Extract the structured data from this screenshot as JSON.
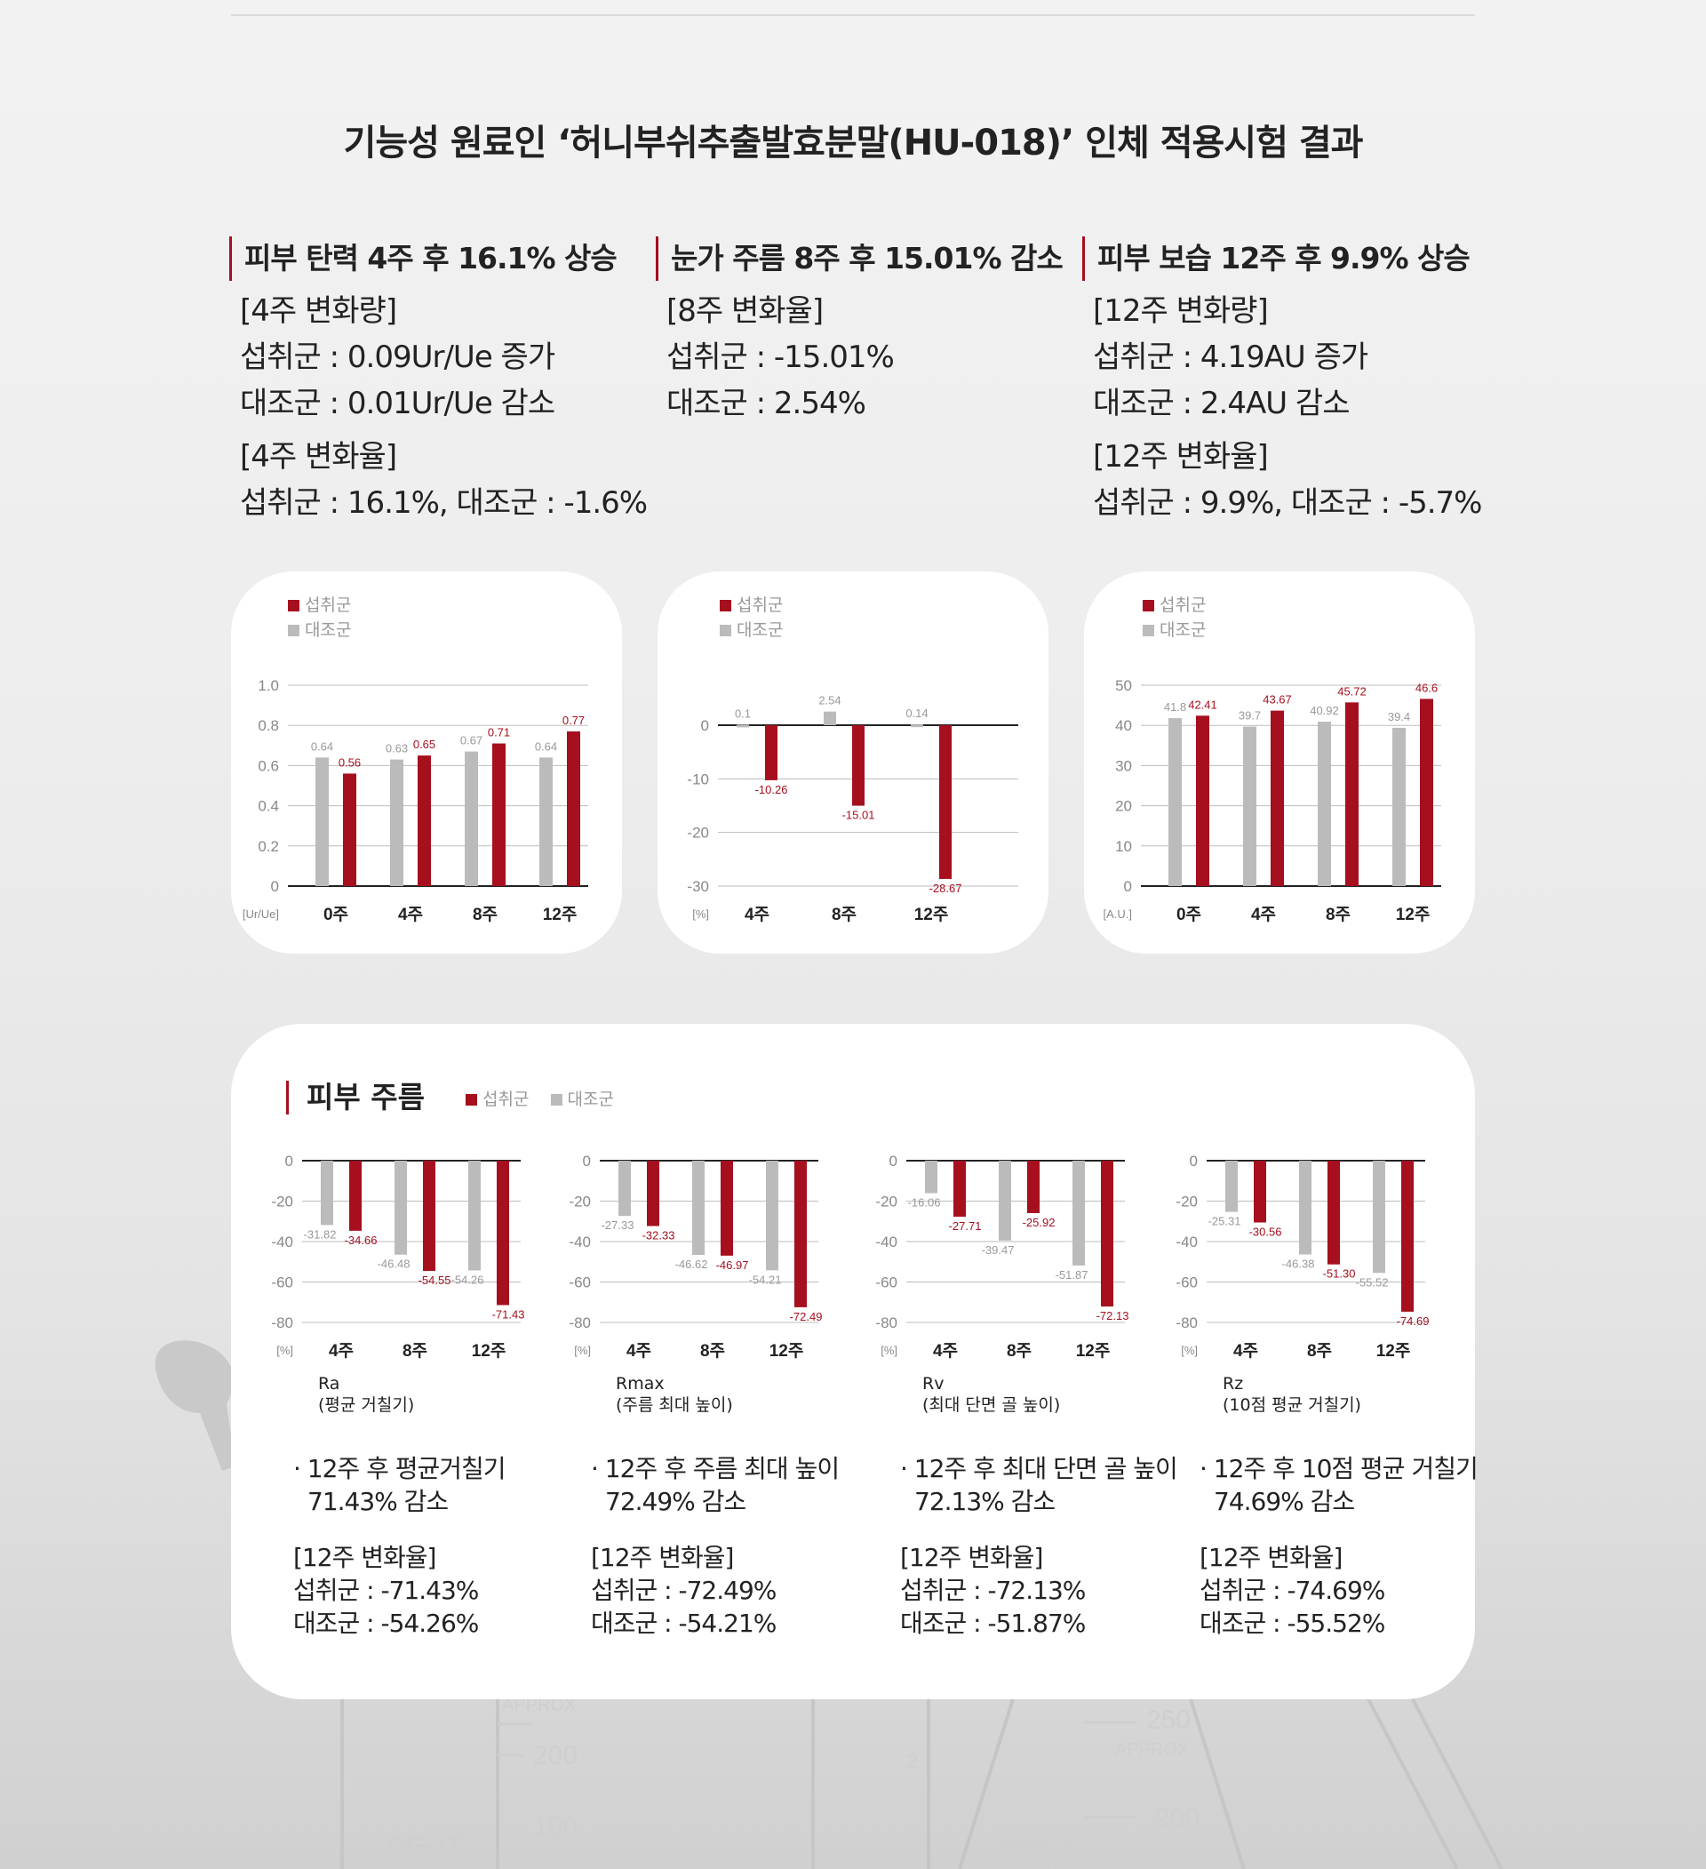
{
  "page_title": "기능성 원료인 ‘허니부쉬추출발효분말(HU-018)’ 인체 적용시험 결과",
  "colors": {
    "intake": "#a50f1e",
    "control": "#bbbbbb",
    "accent": "#a50f1e"
  },
  "summaries": [
    {
      "head": "피부 탄력 4주 후 16.1% 상승",
      "lines": [
        "[4주 변화량]",
        "섭취군 : 0.09Ur/Ue 증가",
        "대조군 : 0.01Ur/Ue 감소"
      ],
      "lines2": [
        "[4주 변화율]",
        "섭취군 : 16.1%, 대조군 : -1.6%"
      ]
    },
    {
      "head": "눈가 주름 8주 후 15.01% 감소",
      "lines": [
        "[8주 변화율]",
        "섭취군 : -15.01%",
        "대조군 : 2.54%"
      ],
      "lines2": []
    },
    {
      "head": "피부 보습 12주 후 9.9% 상승",
      "lines": [
        "[12주 변화량]",
        "섭취군 : 4.19AU 증가",
        "대조군 : 2.4AU 감소"
      ],
      "lines2": [
        "[12주 변화율]",
        "섭취군 : 9.9%, 대조군 : -5.7%"
      ]
    }
  ],
  "legend": {
    "intake": "섭취군",
    "control": "대조군"
  },
  "wrinkle_section": {
    "title": "피부 주름",
    "captions": [
      [
        "Ra",
        "(평균 거칠기)"
      ],
      [
        "Rmax",
        "(주름 최대 높이)"
      ],
      [
        "Rv",
        "(최대 단면 골 높이)"
      ],
      [
        "Rz",
        "(10점 평균 거칠기)"
      ]
    ],
    "notes": [
      [
        "· 12주 후 평균거칠기",
        "71.43% 감소",
        "[12주 변화율]",
        "섭취군 : -71.43%",
        "대조군 : -54.26%"
      ],
      [
        "· 12주 후 주름 최대 높이",
        "72.49% 감소",
        "[12주 변화율]",
        "섭취군 : -72.49%",
        "대조군 : -54.21%"
      ],
      [
        "· 12주 후 최대 단면 골 높이",
        "72.13% 감소",
        "[12주 변화율]",
        "섭취군 : -72.13%",
        "대조군 : -51.87%"
      ],
      [
        "· 12주 후 10점 평균 거칠기",
        "74.69% 감소",
        "[12주 변화율]",
        "섭취군 : -74.69%",
        "대조군 : -55.52%"
      ]
    ]
  },
  "chart_data": [
    {
      "type": "bar",
      "unit": "[Ur/Ue]",
      "categories": [
        "0주",
        "4주",
        "8주",
        "12주"
      ],
      "ylim": [
        0,
        1.0
      ],
      "yticks": [
        "0",
        "0.2",
        "0.4",
        "0.6",
        "0.8",
        "1.0"
      ],
      "ytick_values": [
        0,
        0.2,
        0.4,
        0.6,
        0.8,
        1.0
      ],
      "series": [
        {
          "name": "대조군",
          "values": [
            0.64,
            0.63,
            0.67,
            0.64
          ],
          "labels": [
            "0.64",
            "0.63",
            "0.67",
            "0.64"
          ]
        },
        {
          "name": "섭취군",
          "values": [
            0.56,
            0.65,
            0.71,
            0.77
          ],
          "labels": [
            "0.56",
            "0.65",
            "0.71",
            "0.77"
          ]
        }
      ]
    },
    {
      "type": "bar",
      "unit": "[%]",
      "categories": [
        "4주",
        "8주",
        "12주"
      ],
      "ylim": [
        -30,
        0
      ],
      "yticks": [
        "0",
        "-10",
        "-20",
        "-30"
      ],
      "ytick_values": [
        0,
        -10,
        -20,
        -30
      ],
      "series": [
        {
          "name": "대조군",
          "values": [
            0.1,
            2.54,
            0.14
          ],
          "labels": [
            "0.1",
            "2.54",
            "0.14"
          ]
        },
        {
          "name": "섭취군",
          "values": [
            -10.26,
            -15.01,
            -28.67
          ],
          "labels": [
            "-10.26",
            "-15.01",
            "-28.67"
          ]
        }
      ]
    },
    {
      "type": "bar",
      "unit": "[A.U.]",
      "categories": [
        "0주",
        "4주",
        "8주",
        "12주"
      ],
      "ylim": [
        0,
        50
      ],
      "yticks": [
        "0",
        "10",
        "20",
        "30",
        "40",
        "50"
      ],
      "ytick_values": [
        0,
        10,
        20,
        30,
        40,
        50
      ],
      "series": [
        {
          "name": "대조군",
          "values": [
            41.8,
            39.7,
            40.92,
            39.4
          ],
          "labels": [
            "41.8",
            "39.7",
            "40.92",
            "39.4"
          ]
        },
        {
          "name": "섭취군",
          "values": [
            42.41,
            43.67,
            45.72,
            46.6
          ],
          "labels": [
            "42.41",
            "43.67",
            "45.72",
            "46.6"
          ]
        }
      ]
    },
    {
      "type": "bar",
      "unit": "[%]",
      "categories": [
        "4주",
        "8주",
        "12주"
      ],
      "ylim": [
        -80,
        0
      ],
      "yticks": [
        "0",
        "-20",
        "-40",
        "-60",
        "-80"
      ],
      "ytick_values": [
        0,
        -20,
        -40,
        -60,
        -80
      ],
      "series": [
        {
          "name": "대조군",
          "values": [
            -31.82,
            -46.48,
            -54.26
          ],
          "labels": [
            "-31.82",
            "-46.48",
            "-54.26"
          ]
        },
        {
          "name": "섭취군",
          "values": [
            -34.66,
            -54.55,
            -71.43
          ],
          "labels": [
            "-34.66",
            "-54.55",
            "-71.43"
          ]
        }
      ]
    },
    {
      "type": "bar",
      "unit": "[%]",
      "categories": [
        "4주",
        "8주",
        "12주"
      ],
      "ylim": [
        -80,
        0
      ],
      "yticks": [
        "0",
        "-20",
        "-40",
        "-60",
        "-80"
      ],
      "ytick_values": [
        0,
        -20,
        -40,
        -60,
        -80
      ],
      "series": [
        {
          "name": "대조군",
          "values": [
            -27.33,
            -46.62,
            -54.21
          ],
          "labels": [
            "-27.33",
            "-46.62",
            "-54.21"
          ]
        },
        {
          "name": "섭취군",
          "values": [
            -32.33,
            -46.97,
            -72.49
          ],
          "labels": [
            "-32.33",
            "-46.97",
            "-72.49"
          ]
        }
      ]
    },
    {
      "type": "bar",
      "unit": "[%]",
      "categories": [
        "4주",
        "8주",
        "12주"
      ],
      "ylim": [
        -80,
        0
      ],
      "yticks": [
        "0",
        "-20",
        "-40",
        "-60",
        "-80"
      ],
      "ytick_values": [
        0,
        -20,
        -40,
        -60,
        -80
      ],
      "series": [
        {
          "name": "대조군",
          "values": [
            -16.06,
            -39.47,
            -51.87
          ],
          "labels": [
            "-16.06",
            "-39.47",
            "-51.87"
          ]
        },
        {
          "name": "섭취군",
          "values": [
            -27.71,
            -25.92,
            -72.13
          ],
          "labels": [
            "-27.71",
            "-25.92",
            "-72.13"
          ]
        }
      ]
    },
    {
      "type": "bar",
      "unit": "[%]",
      "categories": [
        "4주",
        "8주",
        "12주"
      ],
      "ylim": [
        -80,
        0
      ],
      "yticks": [
        "0",
        "-20",
        "-40",
        "-60",
        "-80"
      ],
      "ytick_values": [
        0,
        -20,
        -40,
        -60,
        -80
      ],
      "series": [
        {
          "name": "대조군",
          "values": [
            -25.31,
            -46.38,
            -55.52
          ],
          "labels": [
            "-25.31",
            "-46.38",
            "-55.52"
          ]
        },
        {
          "name": "섭취군",
          "values": [
            -30.56,
            -51.3,
            -74.69
          ],
          "labels": [
            "-30.56",
            "-51.30",
            "-74.69"
          ]
        }
      ]
    }
  ]
}
